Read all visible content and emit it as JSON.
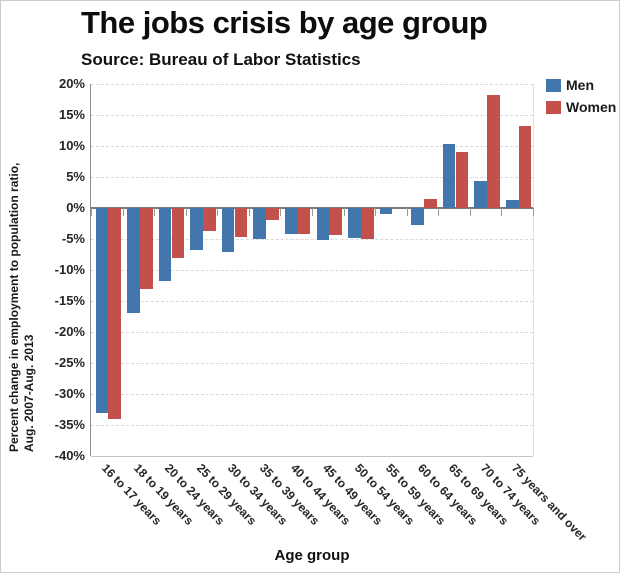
{
  "title": "The jobs crisis by age group",
  "source": "Source: Bureau of Labor Statistics",
  "y_axis": {
    "label_line1": "Percent change in employment to population ratio,",
    "label_line2": "Aug. 2007-Aug. 2013",
    "ticks": [
      "20%",
      "15%",
      "10%",
      "5%",
      "0%",
      "-5%",
      "-10%",
      "-15%",
      "-20%",
      "-25%",
      "-30%",
      "-35%",
      "-40%"
    ]
  },
  "x_axis": {
    "label": "Age group"
  },
  "legend": [
    {
      "label": "Men",
      "color": "#4376AC"
    },
    {
      "label": "Women",
      "color": "#C4504B"
    }
  ],
  "chart_data": {
    "type": "bar",
    "title": "The jobs crisis by age group",
    "subtitle": "Source: Bureau of Labor Statistics",
    "xlabel": "Age group",
    "ylabel": "Percent change in employment to population ratio, Aug. 2007-Aug. 2013",
    "ylim": [
      -40,
      20
    ],
    "ytick_step": 5,
    "grid": true,
    "legend_position": "top-right",
    "categories": [
      "16 to 17 years",
      "18 to 19 years",
      "20 to 24 years",
      "25 to 29 years",
      "30 to 34 years",
      "35 to 39 years",
      "40 to 44 years",
      "45 to 49 years",
      "50 to 54 years",
      "55 to 59 years",
      "60 to 64 years",
      "65 to 69 years",
      "70 to 74 years",
      "75 years and over"
    ],
    "series": [
      {
        "name": "Men",
        "color": "#4376AC",
        "values": [
          -33.0,
          -17.0,
          -11.7,
          -6.8,
          -7.1,
          -5.0,
          -4.2,
          -5.2,
          -4.9,
          -1.0,
          -2.7,
          10.3,
          4.4,
          1.3
        ]
      },
      {
        "name": "Women",
        "color": "#C4504B",
        "values": [
          -34.0,
          -13.1,
          -8.1,
          -3.7,
          -4.7,
          -2.0,
          -4.2,
          -4.4,
          -5.0,
          0.0,
          1.4,
          9.0,
          18.3,
          13.3
        ]
      }
    ]
  }
}
